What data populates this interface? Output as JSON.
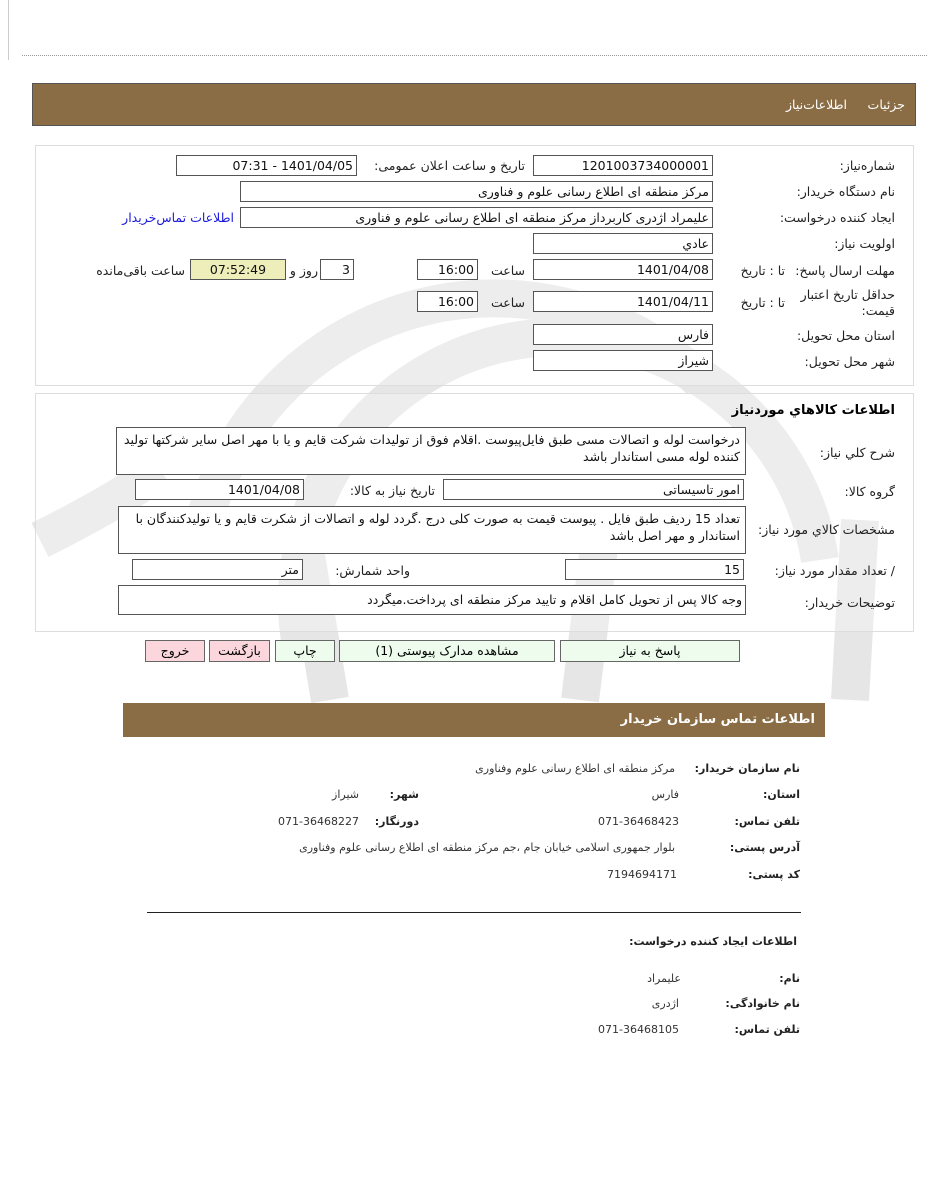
{
  "header": {
    "tabs": [
      "جزئیات",
      "اطلاعات‌نیاز"
    ]
  },
  "need": {
    "number_label": "شماره‌نیاز:",
    "number": "1201003734000001",
    "announce_label": "تاریخ و ساعت اعلان عمومی:",
    "announce": "1401/04/05 - 07:31",
    "buyer_label": "نام دستگاه خریدار:",
    "buyer": "مرکز منطقه ای اطلاع رسانی علوم و فناوری",
    "creator_label": "ایجاد کننده درخواست:",
    "creator": "علیمراد اژدری کاربرداز مرکز منطقه ای اطلاع رسانی علوم و فناوری",
    "contact_link": "اطلاعات تماس‌خریدار",
    "priority_label": "اولویت نیاز:",
    "priority": "عادي",
    "deadline_label": "مهلت ارسال پاسخ:",
    "to_date_label": "تا : تاریخ",
    "deadline_date": "1401/04/08",
    "time_label": "ساعت",
    "deadline_time": "16:00",
    "days": "3",
    "days_label": "روز و",
    "remaining": "07:52:49",
    "remaining_label": "ساعت باقی‌مانده",
    "validity_label": "حداقل تاریخ اعتبار قیمت:",
    "validity_date": "1401/04/11",
    "validity_time": "16:00",
    "province_label": "استان محل تحویل:",
    "province": "فارس",
    "city_label": "شهر محل تحویل:",
    "city": "شیراز"
  },
  "goods": {
    "title": "اطلاعات کالاهاي موردنیاز",
    "desc_label": "شرح کلي نیاز:",
    "desc": "درخواست لوله و اتصالات مسی طبق فایل‌پیوست .اقلام فوق از تولیدات شرکت قایم و یا با مهر اصل سایر شرکتها تولید کننده لوله مسی استاندار باشد",
    "group_label": "گروه کالا:",
    "group": "امور تاسیساتی",
    "need_date_label": "تاریخ نیاز به کالا:",
    "need_date": "1401/04/08",
    "specs_label": "مشخصات کالاي مورد نیاز:",
    "specs": "تعداد 15 ردیف طبق فایل . پیوست قیمت به صورت کلی درج .گردد لوله و اتصالات از شکرت قایم و یا تولیدکنندگان با استاندار و مهر اصل باشد",
    "qty_label": "/ تعداد مقدار مورد نیاز:",
    "qty": "15",
    "unit_label": "واحد شمارش:",
    "unit": "متر",
    "notes_label": "توضیحات خریدار:",
    "notes": "وجه کالا پس از تحویل کامل اقلام و تایید مرکز منطقه ای پرداخت.میگردد"
  },
  "buttons": {
    "reply": "پاسخ به نیاز",
    "attachments": "مشاهده مدارک پیوستی (1)",
    "print": "چاپ",
    "back": "بازگشت",
    "exit": "خروج"
  },
  "contact": {
    "title": "اطلاعات تماس سازمان خریدار",
    "org_label": "نام سازمان خریدار:",
    "org": "مرکز منطقه ای اطلاع رسانی علوم وفناوری",
    "province_label": "استان:",
    "province": "فارس",
    "city_label": "شهر:",
    "city": "شیراز",
    "phone_label": "تلفن تماس:",
    "phone": "071-36468423",
    "fax_label": "دورنگار:",
    "fax": "071-36468227",
    "address_label": "آدرس پستی:",
    "address": "بلوار جمهوری اسلامی خیابان جام ،جم مرکز منطقه ای اطلاع رسانی علوم وفناوری",
    "postal_label": "کد پستی:",
    "postal": "7194694171",
    "creator_title": "اطلاعات ایجاد کننده درخواست:",
    "name_label": "نام:",
    "name": "علیمراد",
    "family_label": "نام خانوادگی:",
    "family": "اژدری",
    "cphone_label": "تلفن تماس:",
    "cphone": "071-36468105"
  },
  "colors": {
    "header": "#8b6d45",
    "link": "#1a1adc",
    "remaining_bg": "#eeeebb"
  }
}
